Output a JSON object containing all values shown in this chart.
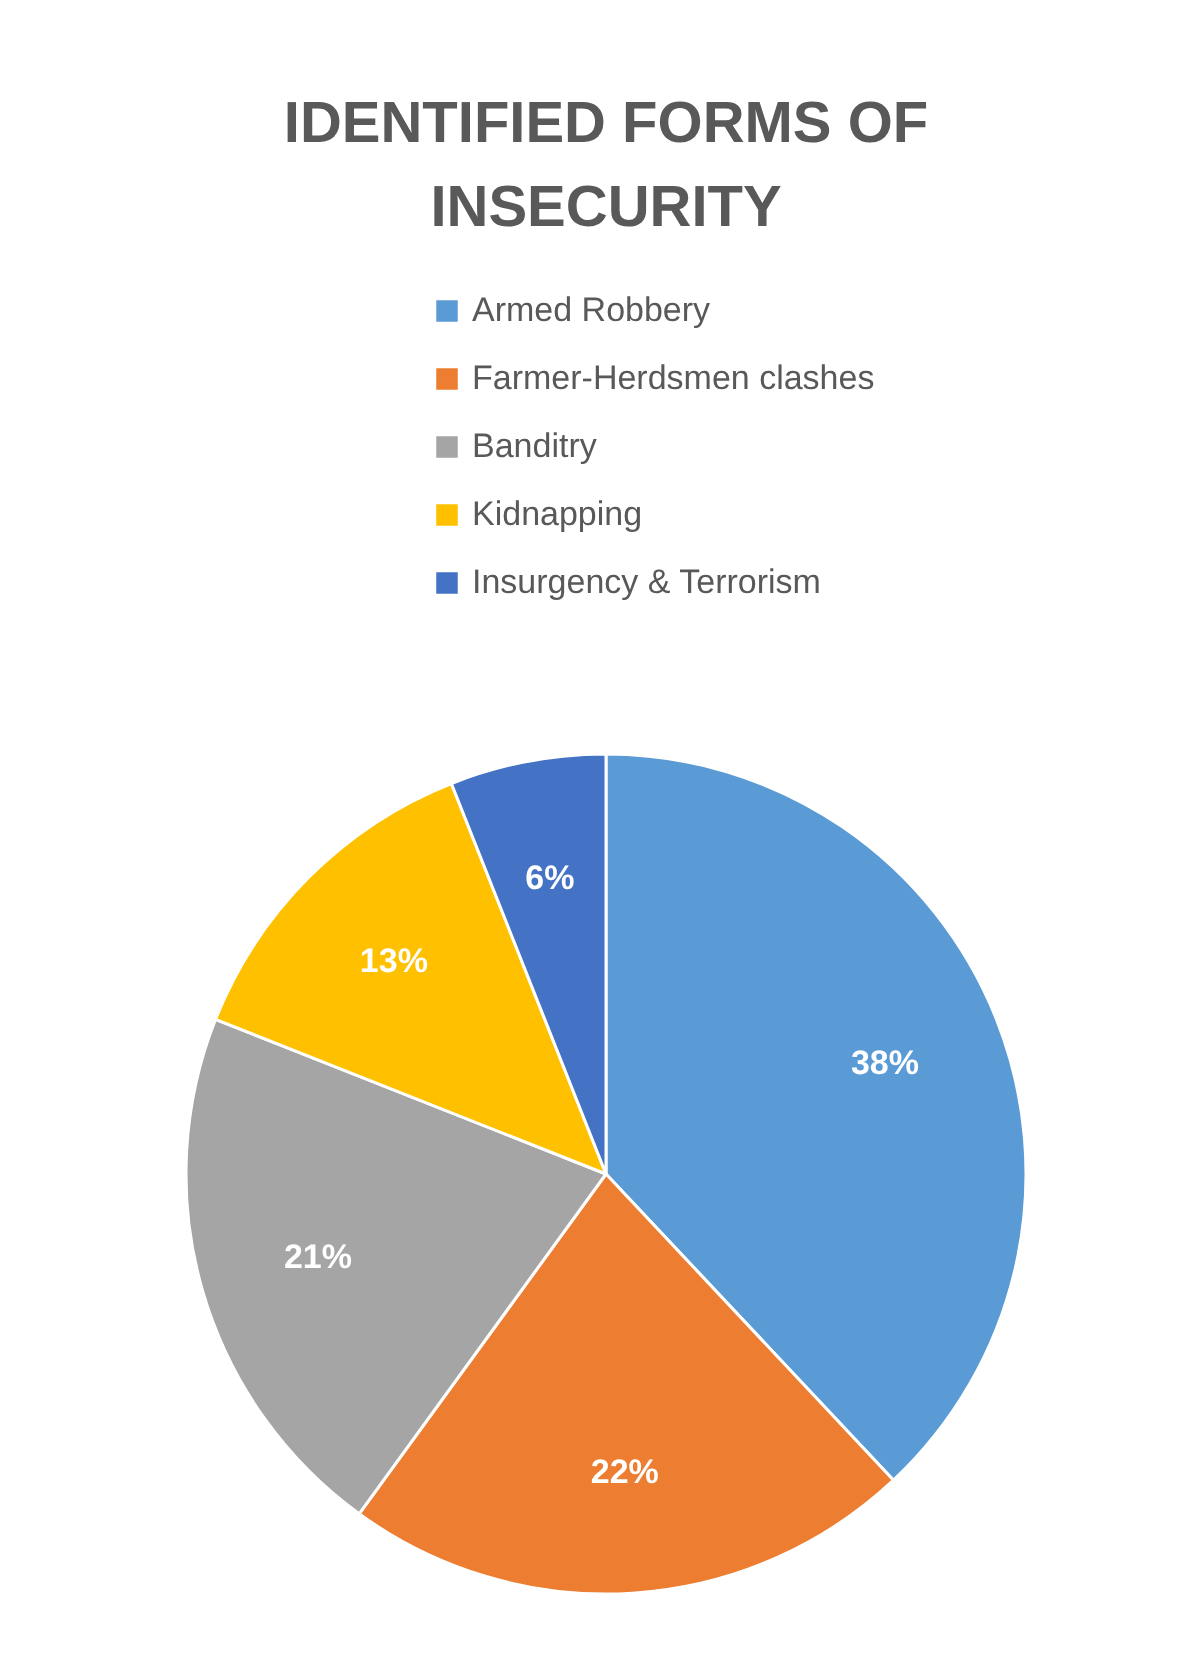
{
  "chart_data": {
    "type": "pie",
    "title": "IDENTIFIED FORMS OF INSECURITY",
    "categories": [
      "Armed Robbery",
      "Farmer-Herdsmen clashes",
      "Banditry",
      "Kidnapping",
      "Insurgency & Terrorism"
    ],
    "values": [
      38,
      22,
      21,
      13,
      6
    ],
    "colors": [
      "#5b9bd5",
      "#ed7d31",
      "#a5a5a5",
      "#ffc000",
      "#4472c4"
    ],
    "value_labels": [
      "38%",
      "22%",
      "21%",
      "13%",
      "6%"
    ],
    "legend": "top"
  }
}
